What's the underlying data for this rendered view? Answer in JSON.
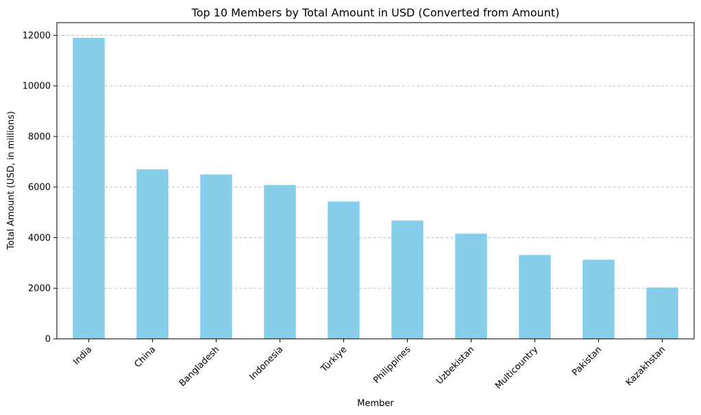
{
  "chart_data": {
    "type": "bar",
    "title": "Top 10 Members by Total Amount in USD (Converted from Amount)",
    "xlabel": "Member",
    "ylabel": "Total Amount (USD, in millions)",
    "categories": [
      "India",
      "China",
      "Bangladesh",
      "Indonesia",
      "Türkiye",
      "Philippines",
      "Uzbekistan",
      "Multicountry",
      "Pakistan",
      "Kazakhstan"
    ],
    "values": [
      11900,
      6700,
      6500,
      6080,
      5430,
      4680,
      4160,
      3320,
      3130,
      2030
    ],
    "ylim": [
      0,
      12500
    ],
    "yticks": [
      0,
      2000,
      4000,
      6000,
      8000,
      10000,
      12000
    ],
    "grid": "y-dashed",
    "bar_color": "#87CEEB",
    "grid_color": "#c0c0c0"
  }
}
